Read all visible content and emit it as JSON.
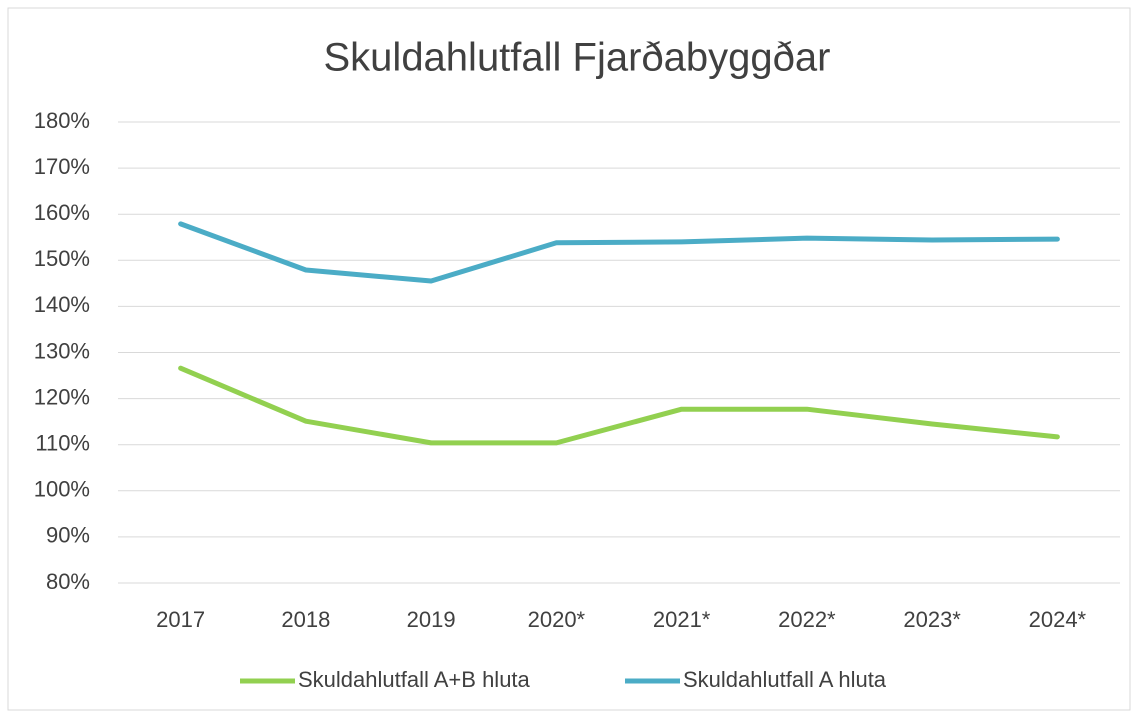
{
  "chart_data": {
    "type": "line",
    "title": "Skuldahlutfall Fjarðabyggðar",
    "categories": [
      "2017",
      "2018",
      "2019",
      "2020*",
      "2021*",
      "2022*",
      "2023*",
      "2024*"
    ],
    "series": [
      {
        "name": "Skuldahlutfall A+B hluta",
        "color": "#92d050",
        "values": [
          126.6,
          115.1,
          110.4,
          110.4,
          117.7,
          117.7,
          114.5,
          111.7
        ]
      },
      {
        "name": "Skuldahlutfall A hluta",
        "color": "#4bacc6",
        "values": [
          157.9,
          147.9,
          145.5,
          153.8,
          154,
          154.8,
          154.4,
          154.6
        ]
      }
    ],
    "ylim": [
      80,
      180
    ],
    "yticks": [
      {
        "value": 80,
        "label": "80%"
      },
      {
        "value": 90,
        "label": "90%"
      },
      {
        "value": 100,
        "label": "100%"
      },
      {
        "value": 110,
        "label": "110%"
      },
      {
        "value": 120,
        "label": "120%"
      },
      {
        "value": 130,
        "label": "130%"
      },
      {
        "value": 140,
        "label": "140%"
      },
      {
        "value": 150,
        "label": "150%"
      },
      {
        "value": 160,
        "label": "160%"
      },
      {
        "value": 170,
        "label": "170%"
      },
      {
        "value": 180,
        "label": "180%"
      }
    ],
    "grid": true,
    "legend": "bottom"
  }
}
